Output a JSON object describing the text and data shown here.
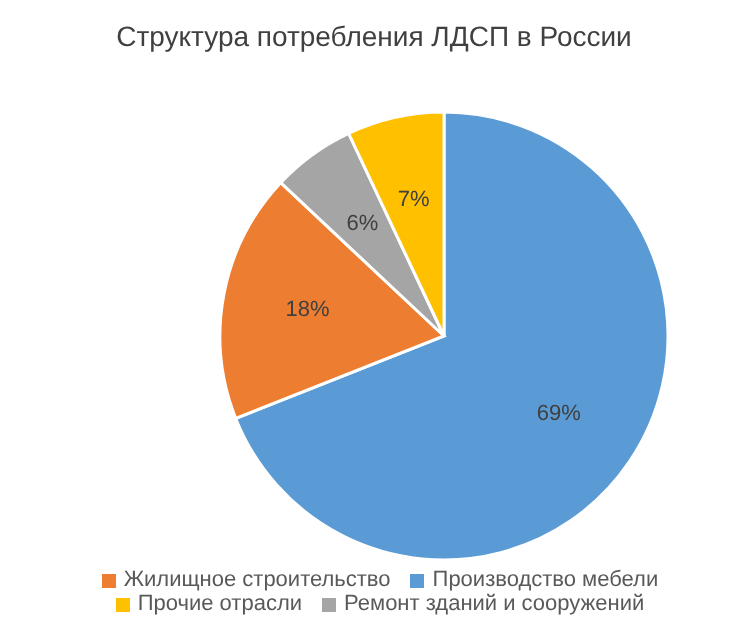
{
  "chart_data": {
    "type": "pie",
    "title": "Структура потребления ЛДСП в России",
    "categories": [
      "Производство мебели",
      "Жилищное строительство",
      "Ремонт зданий и сооружений",
      "Прочие отрасли"
    ],
    "values": [
      69,
      18,
      6,
      7
    ],
    "value_labels": [
      "69%",
      "18%",
      "6%",
      "7%"
    ],
    "colors": [
      "#5b9bd5",
      "#ed7d31",
      "#a5a5a5",
      "#ffc000"
    ],
    "legend": "bottom"
  }
}
